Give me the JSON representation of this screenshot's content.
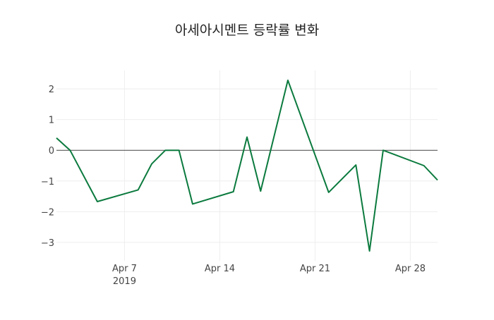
{
  "chart_data": {
    "type": "line",
    "title": "아세아시멘트 등락률 변화",
    "xlabel": "",
    "ylabel": "",
    "x": [
      "2019-04-02",
      "2019-04-03",
      "2019-04-05",
      "2019-04-08",
      "2019-04-09",
      "2019-04-10",
      "2019-04-11",
      "2019-04-12",
      "2019-04-15",
      "2019-04-16",
      "2019-04-17",
      "2019-04-19",
      "2019-04-22",
      "2019-04-24",
      "2019-04-25",
      "2019-04-26",
      "2019-04-29",
      "2019-04-30"
    ],
    "series": [
      {
        "name": "등락률",
        "color": "#0b7a3e",
        "values": [
          0.4,
          0.0,
          -1.67,
          -1.29,
          -0.44,
          0.0,
          0.0,
          -1.75,
          -1.35,
          0.43,
          -1.33,
          2.28,
          -1.37,
          -0.48,
          -3.28,
          0.0,
          -0.5,
          -0.97
        ]
      }
    ],
    "xlim": [
      "2019-04-02",
      "2019-04-30"
    ],
    "ylim": [
      -3.6,
      2.6
    ],
    "xticks": [
      {
        "date": "2019-04-07",
        "label": "Apr 7",
        "sublabel": "2019"
      },
      {
        "date": "2019-04-14",
        "label": "Apr 14"
      },
      {
        "date": "2019-04-21",
        "label": "Apr 21"
      },
      {
        "date": "2019-04-28",
        "label": "Apr 28"
      }
    ],
    "yticks": [
      {
        "value": 2,
        "label": "2"
      },
      {
        "value": 1,
        "label": "1"
      },
      {
        "value": 0,
        "label": "0"
      },
      {
        "value": -1,
        "label": "−1"
      },
      {
        "value": -2,
        "label": "−2"
      },
      {
        "value": -3,
        "label": "−3"
      }
    ],
    "grid": true,
    "legend": "none"
  }
}
